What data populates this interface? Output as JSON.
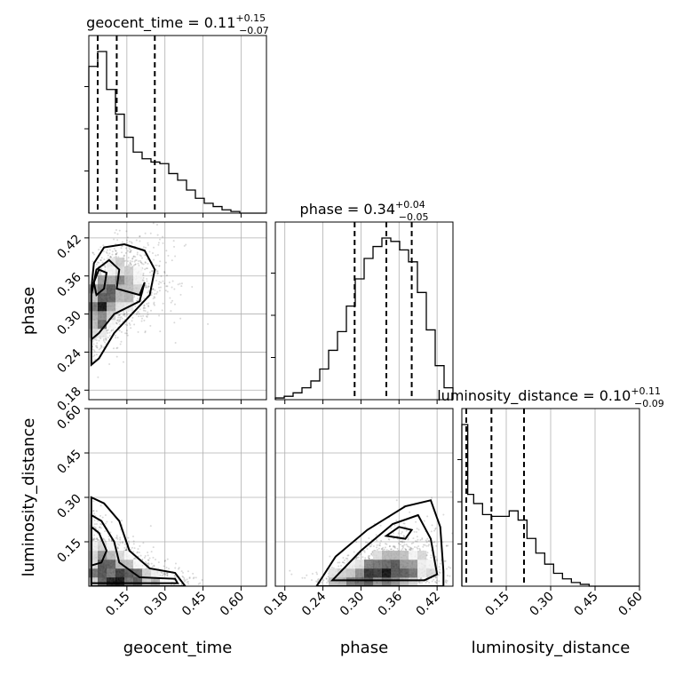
{
  "chart_data": {
    "type": "corner",
    "parameters": [
      "geocent_time",
      "phase",
      "luminosity_distance"
    ],
    "titles": [
      {
        "name": "geocent_time",
        "median": "0.11",
        "plus": "+0.15",
        "minus": "−0.07"
      },
      {
        "name": "phase",
        "median": "0.34",
        "plus": "+0.04",
        "minus": "−0.05"
      },
      {
        "name": "luminosity_distance",
        "median": "0.10",
        "plus": "+0.11",
        "minus": "−0.09"
      }
    ],
    "ranges": {
      "geocent_time": [
        0.0,
        0.7
      ],
      "phase": [
        0.165,
        0.445
      ],
      "luminosity_distance": [
        0.0,
        0.6
      ]
    },
    "tick_labels": {
      "geocent_time": [
        "0.15",
        "0.30",
        "0.45",
        "0.60"
      ],
      "phase": [
        "0.18",
        "0.24",
        "0.30",
        "0.36",
        "0.42"
      ],
      "luminosity_distance": [
        "0.15",
        "0.30",
        "0.45",
        "0.60"
      ]
    },
    "quantiles": {
      "geocent_time": [
        0.035,
        0.11,
        0.26
      ],
      "phase": [
        0.29,
        0.34,
        0.38
      ],
      "luminosity_distance": [
        0.015,
        0.1,
        0.21
      ]
    },
    "histograms": {
      "geocent_time": {
        "edges": [
          0.0,
          0.035,
          0.07,
          0.105,
          0.14,
          0.175,
          0.21,
          0.245,
          0.28,
          0.315,
          0.35,
          0.385,
          0.42,
          0.455,
          0.49,
          0.525,
          0.56,
          0.595,
          0.63,
          0.665,
          0.7
        ],
        "counts": [
          0.89,
          0.98,
          0.75,
          0.6,
          0.46,
          0.37,
          0.33,
          0.31,
          0.3,
          0.24,
          0.2,
          0.14,
          0.09,
          0.06,
          0.04,
          0.02,
          0.01,
          0.0,
          0.0,
          0.0
        ]
      },
      "phase": {
        "edges": [
          0.165,
          0.179,
          0.193,
          0.207,
          0.221,
          0.235,
          0.249,
          0.263,
          0.277,
          0.291,
          0.305,
          0.319,
          0.333,
          0.347,
          0.361,
          0.375,
          0.389,
          0.403,
          0.417,
          0.431,
          0.445
        ],
        "counts": [
          0.01,
          0.02,
          0.04,
          0.07,
          0.11,
          0.18,
          0.29,
          0.4,
          0.55,
          0.71,
          0.83,
          0.9,
          0.95,
          0.93,
          0.88,
          0.81,
          0.63,
          0.41,
          0.2,
          0.07
        ]
      },
      "luminosity_distance": {
        "edges": [
          0.0,
          0.02,
          0.04,
          0.07,
          0.1,
          0.13,
          0.16,
          0.19,
          0.22,
          0.25,
          0.28,
          0.31,
          0.34,
          0.37,
          0.4,
          0.43,
          0.46,
          0.49,
          0.52,
          0.56,
          0.6
        ],
        "counts": [
          0.88,
          0.5,
          0.45,
          0.39,
          0.38,
          0.38,
          0.41,
          0.36,
          0.26,
          0.18,
          0.12,
          0.07,
          0.04,
          0.02,
          0.01,
          0.0,
          0.0,
          0.0,
          0.0,
          0.0
        ]
      }
    },
    "grid": true,
    "scatter_points_per_panel": 1500
  }
}
